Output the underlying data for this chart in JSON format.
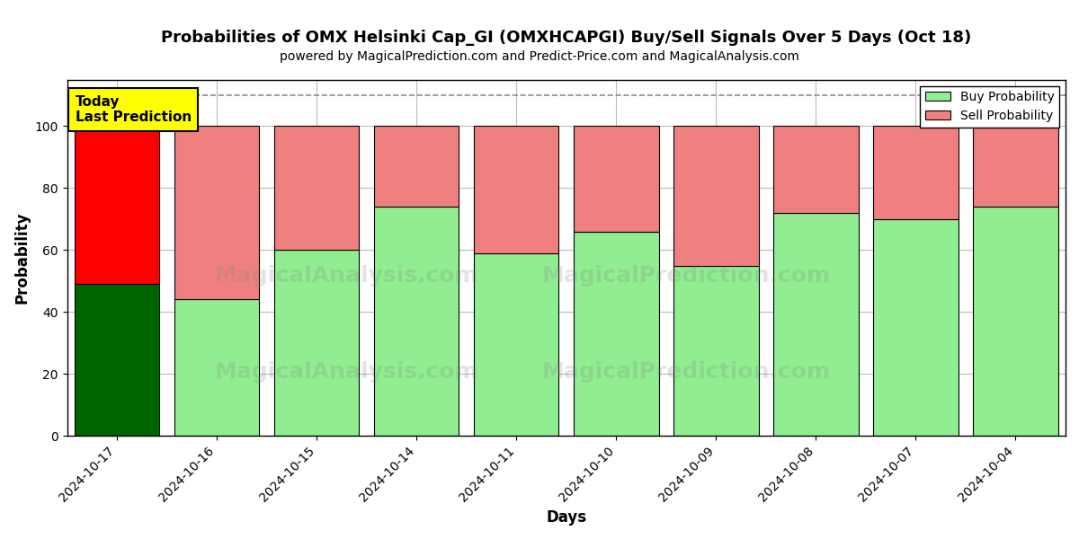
{
  "title": "Probabilities of OMX Helsinki Cap_GI (OMXHCAPGI) Buy/Sell Signals Over 5 Days (Oct 18)",
  "subtitle": "powered by MagicalPrediction.com and Predict-Price.com and MagicalAnalysis.com",
  "xlabel": "Days",
  "ylabel": "Probability",
  "categories": [
    "2024-10-17",
    "2024-10-16",
    "2024-10-15",
    "2024-10-14",
    "2024-10-11",
    "2024-10-10",
    "2024-10-09",
    "2024-10-08",
    "2024-10-07",
    "2024-10-04"
  ],
  "buy_values": [
    49,
    44,
    60,
    74,
    59,
    66,
    55,
    72,
    70,
    74
  ],
  "sell_values": [
    51,
    56,
    40,
    26,
    41,
    34,
    45,
    28,
    30,
    26
  ],
  "buy_colors": [
    "#006400",
    "#90EE90",
    "#90EE90",
    "#90EE90",
    "#90EE90",
    "#90EE90",
    "#90EE90",
    "#90EE90",
    "#90EE90",
    "#90EE90"
  ],
  "sell_colors": [
    "#FF0000",
    "#F08080",
    "#F08080",
    "#F08080",
    "#F08080",
    "#F08080",
    "#F08080",
    "#F08080",
    "#F08080",
    "#F08080"
  ],
  "today_label": "Today\nLast Prediction",
  "today_bg": "#FFFF00",
  "legend_buy_color": "#90EE90",
  "legend_sell_color": "#F08080",
  "legend_buy_label": "Buy Probability",
  "legend_sell_label": "Sell Probability",
  "ylim": [
    0,
    115
  ],
  "yticks": [
    0,
    20,
    40,
    60,
    80,
    100
  ],
  "dashed_line_y": 110,
  "bar_edge_color": "#000000",
  "bar_linewidth": 0.8,
  "background_color": "#ffffff",
  "grid_color": "#aaaaaa",
  "watermark1": "MagicalAnalysis.com",
  "watermark2": "MagicalPrediction.com"
}
